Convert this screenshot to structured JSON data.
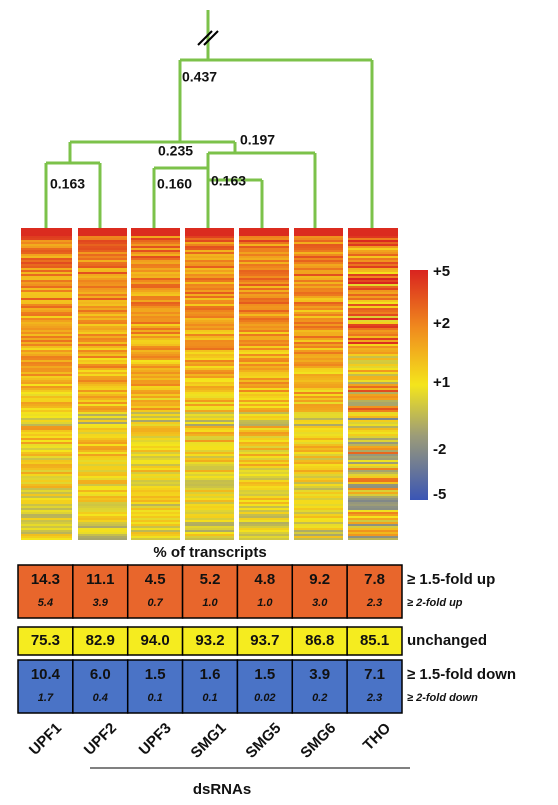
{
  "dendrogram": {
    "nodes": [
      {
        "label": "0.437"
      },
      {
        "label": "0.235"
      },
      {
        "label": "0.197"
      },
      {
        "label": "0.163"
      },
      {
        "label": "0.160"
      },
      {
        "label": "0.163"
      }
    ]
  },
  "colorbar": {
    "labels": [
      "+5",
      "+2",
      "+1",
      "-2",
      "-5"
    ]
  },
  "table": {
    "title": "% of transcripts",
    "columns": [
      "UPF1",
      "UPF2",
      "UPF3",
      "SMG1",
      "SMG5",
      "SMG6",
      "THO"
    ],
    "rows": [
      {
        "label": "≥ 1.5-fold up",
        "sublabel": "≥ 2-fold up",
        "values": [
          "14.3",
          "11.1",
          "4.5",
          "5.2",
          "4.8",
          "9.2",
          "7.8"
        ],
        "subvalues": [
          "5.4",
          "3.9",
          "0.7",
          "1.0",
          "1.0",
          "3.0",
          "2.3"
        ]
      },
      {
        "label": "unchanged",
        "values": [
          "75.3",
          "82.9",
          "94.0",
          "93.2",
          "93.7",
          "86.8",
          "85.1"
        ]
      },
      {
        "label": "≥ 1.5-fold down",
        "sublabel": "≥ 2-fold down",
        "values": [
          "10.4",
          "6.0",
          "1.5",
          "1.6",
          "1.5",
          "3.9",
          "7.1"
        ],
        "subvalues": [
          "1.7",
          "0.4",
          "0.1",
          "0.1",
          "0.02",
          "0.2",
          "2.3"
        ]
      }
    ],
    "axis_label": "dsRNAs"
  }
}
